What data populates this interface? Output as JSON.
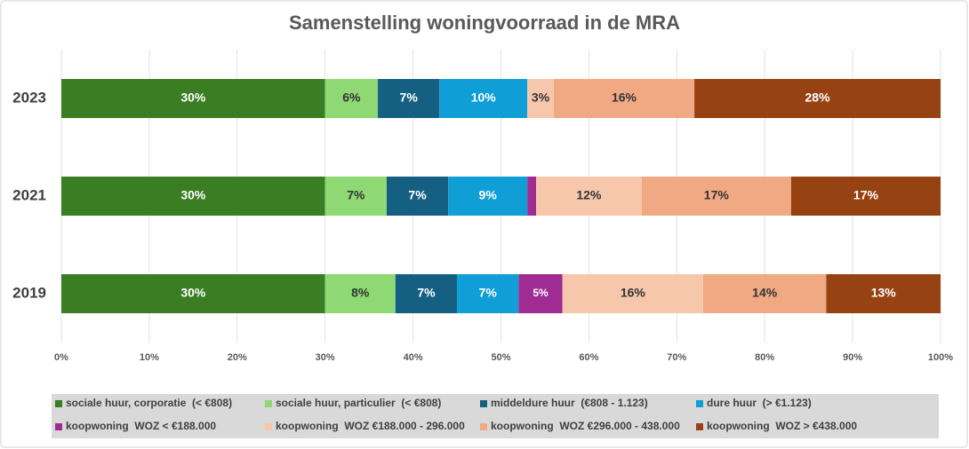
{
  "chart_data": {
    "type": "stacked_bar_horizontal",
    "title": "Samenstelling woningvoorraad in de MRA",
    "categories": [
      "2023",
      "2021",
      "2019"
    ],
    "xlim": [
      0,
      100
    ],
    "xticks": [
      {
        "value": 0,
        "label": "0%"
      },
      {
        "value": 10,
        "label": "10%"
      },
      {
        "value": 20,
        "label": "20%"
      },
      {
        "value": 30,
        "label": "30%"
      },
      {
        "value": 40,
        "label": "40%"
      },
      {
        "value": 50,
        "label": "50%"
      },
      {
        "value": 60,
        "label": "60%"
      },
      {
        "value": 70,
        "label": "70%"
      },
      {
        "value": 80,
        "label": "80%"
      },
      {
        "value": 90,
        "label": "90%"
      },
      {
        "value": 100,
        "label": "100%"
      }
    ],
    "grid": true,
    "legend": "bottom",
    "series": [
      {
        "name": "sociale huur, corporatie  (< €808)",
        "color": "#3a7d22",
        "label_color": "#ffffff",
        "values": [
          30,
          30,
          30
        ],
        "value_labels": [
          "30%",
          "30%",
          "30%"
        ]
      },
      {
        "name": "sociale huur, particulier  (< €808)",
        "color": "#8ed973",
        "label_color": "#333333",
        "values": [
          6,
          7,
          8
        ],
        "value_labels": [
          "6%",
          "7%",
          "8%"
        ]
      },
      {
        "name": "middeldure huur  (€808 - 1.123)",
        "color": "#156082",
        "label_color": "#ffffff",
        "values": [
          7,
          7,
          7
        ],
        "value_labels": [
          "7%",
          "7%",
          "7%"
        ]
      },
      {
        "name": "dure huur  (> €1.123)",
        "color": "#0f9ed5",
        "label_color": "#ffffff",
        "values": [
          10,
          9,
          7
        ],
        "value_labels": [
          "10%",
          "9%",
          "7%"
        ]
      },
      {
        "name": "koopwoning  WOZ < €188.000",
        "color": "#a02b93",
        "label_color": "#ffffff",
        "values": [
          0,
          1,
          5
        ],
        "value_labels": [
          null,
          null,
          "5%"
        ]
      },
      {
        "name": "koopwoning  WOZ €188.000 - 296.000",
        "color": "#f7c7ac",
        "label_color": "#333333",
        "values": [
          3,
          12,
          16
        ],
        "value_labels": [
          "3%",
          "12%",
          "16%"
        ]
      },
      {
        "name": "koopwoning  WOZ €296.000 - 438.000",
        "color": "#f1a983",
        "label_color": "#333333",
        "values": [
          16,
          17,
          14
        ],
        "value_labels": [
          "16%",
          "17%",
          "14%"
        ]
      },
      {
        "name": "koopwoning  WOZ > €438.000",
        "color": "#974212",
        "label_color": "#ffffff",
        "values": [
          28,
          17,
          13
        ],
        "value_labels": [
          "28%",
          "17%",
          "13%"
        ]
      }
    ]
  }
}
